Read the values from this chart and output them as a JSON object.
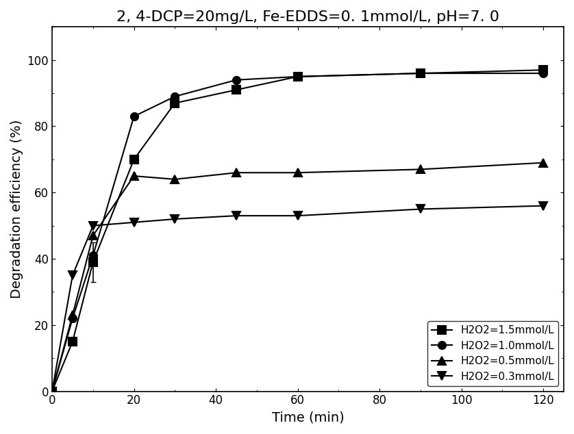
{
  "title": "2, 4-DCP=20mg/L, Fe-EDDS=0. 1mmol/L, pH=7. 0",
  "xlabel": "Time (min)",
  "ylabel": "Degradation efficiency (%)",
  "xlim": [
    0,
    125
  ],
  "ylim": [
    0,
    110
  ],
  "xticks": [
    0,
    20,
    40,
    60,
    80,
    100,
    120
  ],
  "yticks": [
    0,
    20,
    40,
    60,
    80,
    100
  ],
  "series": [
    {
      "label": "H2O2=1.5mmol/L",
      "marker": "s",
      "x": [
        0,
        5,
        10,
        20,
        30,
        45,
        60,
        90,
        120
      ],
      "y": [
        0,
        15,
        39,
        70,
        87,
        91,
        95,
        96,
        97
      ]
    },
    {
      "label": "H2O2=1.0mmol/L",
      "marker": "o",
      "x": [
        0,
        5,
        10,
        20,
        30,
        45,
        60,
        90,
        120
      ],
      "y": [
        0,
        22,
        41,
        83,
        89,
        94,
        95,
        96,
        96
      ]
    },
    {
      "label": "H2O2=0.5mmol/L",
      "marker": "^",
      "x": [
        0,
        5,
        10,
        20,
        30,
        45,
        60,
        90,
        120
      ],
      "y": [
        0,
        23,
        47,
        65,
        64,
        66,
        66,
        67,
        69
      ]
    },
    {
      "label": "H2O2=0.3mmol/L",
      "marker": "v",
      "x": [
        0,
        5,
        10,
        20,
        30,
        45,
        60,
        90,
        120
      ],
      "y": [
        0,
        35,
        50,
        51,
        52,
        53,
        53,
        55,
        56
      ]
    }
  ],
  "legend_loc": "lower right",
  "line_color": "black",
  "marker_size": 8,
  "line_width": 1.5,
  "title_fontsize": 16,
  "label_fontsize": 14,
  "tick_fontsize": 12,
  "legend_fontsize": 11
}
